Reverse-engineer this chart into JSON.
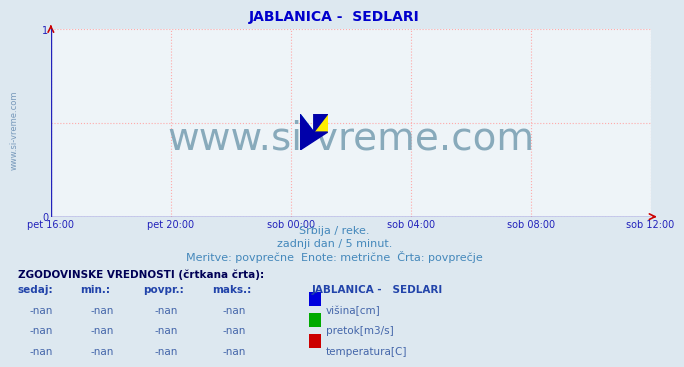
{
  "title": "JABLANICA -  SEDLARI",
  "title_color": "#0000cc",
  "title_fontsize": 10,
  "bg_color": "#dde8f0",
  "plot_bg_color": "#eef4f8",
  "watermark_text": "www.si-vreme.com",
  "watermark_color": "#88aabb",
  "watermark_fontsize": 28,
  "sidebar_text": "www.si-vreme.com",
  "sidebar_color": "#7799bb",
  "sidebar_fontsize": 6,
  "grid_color": "#ffaaaa",
  "grid_linestyle": ":",
  "axis_color": "#2222bb",
  "tick_color": "#2222bb",
  "ylim": [
    0,
    1
  ],
  "yticks": [
    0,
    1
  ],
  "xtick_labels": [
    "pet 16:00",
    "pet 20:00",
    "sob 00:00",
    "sob 04:00",
    "sob 08:00",
    "sob 12:00"
  ],
  "xtick_positions": [
    0.0,
    0.2,
    0.4,
    0.6,
    0.8,
    1.0
  ],
  "subtitle1": "Srbija / reke.",
  "subtitle2": "zadnji dan / 5 minut.",
  "subtitle3": "Meritve: povprečne  Enote: metrične  Črta: povprečje",
  "subtitle_color": "#4488bb",
  "subtitle_fontsize": 8,
  "table_header": "ZGODOVINSKE VREDNOSTI (črtkana črta):",
  "table_header_color": "#000055",
  "table_header_fontsize": 7.5,
  "col_headers": [
    "sedaj:",
    "min.:",
    "povpr.:",
    "maks.:"
  ],
  "col_header_color": "#2244aa",
  "col_header_fontsize": 7.5,
  "station_header": "JABLANICA -   SEDLARI",
  "station_header_color": "#2244aa",
  "station_header_fontsize": 7.5,
  "row_value": "-nan",
  "row_color": "#4466aa",
  "row_fontsize": 7.5,
  "legend_items": [
    {
      "label": "višina[cm]",
      "color": "#0000dd"
    },
    {
      "label": "pretok[m3/s]",
      "color": "#00aa00"
    },
    {
      "label": "temperatura[C]",
      "color": "#cc0000"
    }
  ],
  "legend_fontsize": 7.5,
  "arrow_color": "#cc0000",
  "logo_colors": {
    "yellow": "#ffee00",
    "cyan": "#00ccee",
    "darkblue": "#0000aa"
  }
}
